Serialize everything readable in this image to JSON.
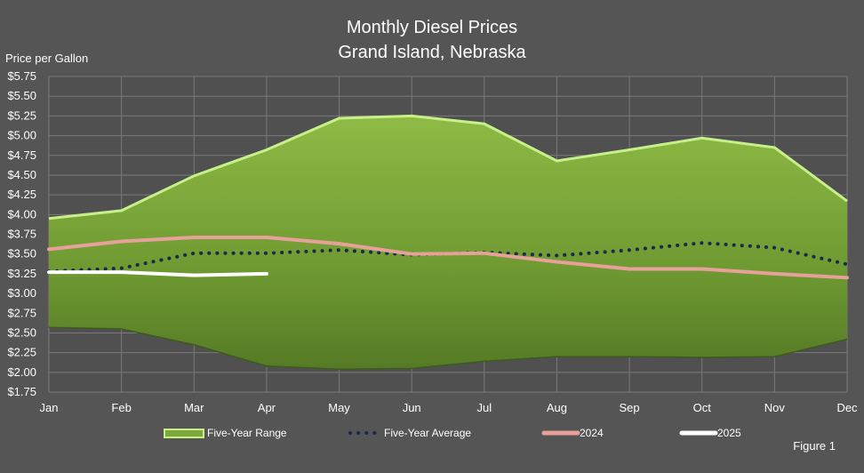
{
  "chart_data": {
    "type": "area",
    "title": "Monthly Diesel Prices",
    "subtitle": "Grand Island, Nebraska",
    "ylabel": "Price per Gallon",
    "xlabel": "",
    "figure_label": "Figure 1",
    "categories": [
      "Jan",
      "Feb",
      "Mar",
      "Apr",
      "May",
      "Jun",
      "Jul",
      "Aug",
      "Sep",
      "Oct",
      "Nov",
      "Dec"
    ],
    "ylim": [
      1.75,
      5.75
    ],
    "yticks": [
      1.75,
      2.0,
      2.25,
      2.5,
      2.75,
      3.0,
      3.25,
      3.5,
      3.75,
      4.0,
      4.25,
      4.5,
      4.75,
      5.0,
      5.25,
      5.5,
      5.75
    ],
    "ytick_labels": [
      "$1.75",
      "$2.00",
      "$2.25",
      "$2.50",
      "$2.75",
      "$3.00",
      "$3.25",
      "$3.50",
      "$3.75",
      "$4.00",
      "$4.25",
      "$4.50",
      "$4.75",
      "$5.00",
      "$5.25",
      "$5.50",
      "$5.75"
    ],
    "grid": true,
    "legend_position": "bottom",
    "range": {
      "name": "Five-Year Range",
      "color": "#7fa83c",
      "edge_color": "#c8f08a",
      "high": [
        3.95,
        4.05,
        4.49,
        4.82,
        5.22,
        5.25,
        5.15,
        4.68,
        4.82,
        4.97,
        4.85,
        4.17
      ],
      "low": [
        2.57,
        2.55,
        2.35,
        2.08,
        2.04,
        2.05,
        2.14,
        2.2,
        2.2,
        2.19,
        2.2,
        2.42
      ]
    },
    "series": [
      {
        "name": "Five-Year Average",
        "color": "#1b2a4a",
        "style": "dotted",
        "values": [
          3.28,
          3.32,
          3.51,
          3.51,
          3.55,
          3.49,
          3.52,
          3.48,
          3.55,
          3.64,
          3.58,
          3.37
        ]
      },
      {
        "name": "2024",
        "color": "#e8a09a",
        "style": "solid",
        "values": [
          3.56,
          3.66,
          3.71,
          3.71,
          3.63,
          3.5,
          3.51,
          3.4,
          3.31,
          3.31,
          3.25,
          3.2
        ]
      },
      {
        "name": "2025",
        "color": "#ffffff",
        "style": "solid",
        "values": [
          3.27,
          3.27,
          3.23,
          3.25,
          null,
          null,
          null,
          null,
          null,
          null,
          null,
          null
        ]
      }
    ]
  }
}
